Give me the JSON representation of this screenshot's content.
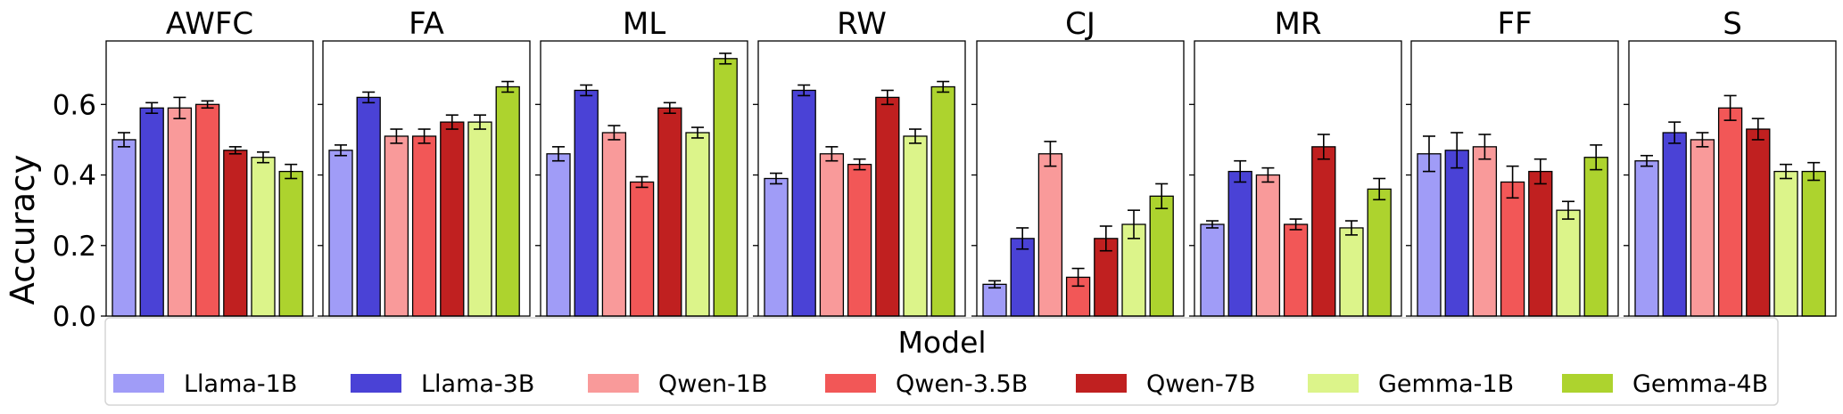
{
  "chart_data": {
    "type": "bar",
    "ylabel": "Accuracy",
    "ylim": [
      0,
      0.78
    ],
    "yticks": [
      "0.0",
      "0.2",
      "0.4",
      "0.6"
    ],
    "error_bars": true,
    "legend": {
      "title": "Model",
      "placement": "bottom-center",
      "entries": [
        "Llama-1B",
        "Llama-3B",
        "Qwen-1B",
        "Qwen-3.5B",
        "Qwen-7B",
        "Gemma-1B",
        "Gemma-4B"
      ]
    },
    "models": [
      {
        "name": "Llama-1B",
        "color": "#a09cf7"
      },
      {
        "name": "Llama-3B",
        "color": "#4a42d6"
      },
      {
        "name": "Qwen-1B",
        "color": "#f99a9a"
      },
      {
        "name": "Qwen-3.5B",
        "color": "#f25757"
      },
      {
        "name": "Qwen-7B",
        "color": "#c02020"
      },
      {
        "name": "Gemma-1B",
        "color": "#dcf48a"
      },
      {
        "name": "Gemma-4B",
        "color": "#add32e"
      }
    ],
    "panels": [
      {
        "title": "AWFC",
        "values": [
          0.5,
          0.59,
          0.59,
          0.6,
          0.47,
          0.45,
          0.41
        ],
        "errors": [
          0.02,
          0.015,
          0.03,
          0.01,
          0.01,
          0.015,
          0.02
        ]
      },
      {
        "title": "FA",
        "values": [
          0.47,
          0.62,
          0.51,
          0.51,
          0.55,
          0.55,
          0.65
        ],
        "errors": [
          0.015,
          0.015,
          0.02,
          0.02,
          0.02,
          0.02,
          0.015
        ]
      },
      {
        "title": "ML",
        "values": [
          0.46,
          0.64,
          0.52,
          0.38,
          0.59,
          0.52,
          0.73
        ],
        "errors": [
          0.02,
          0.015,
          0.02,
          0.015,
          0.015,
          0.015,
          0.015
        ]
      },
      {
        "title": "RW",
        "values": [
          0.39,
          0.64,
          0.46,
          0.43,
          0.62,
          0.51,
          0.65
        ],
        "errors": [
          0.015,
          0.015,
          0.02,
          0.015,
          0.02,
          0.02,
          0.015
        ]
      },
      {
        "title": "CJ",
        "values": [
          0.09,
          0.22,
          0.46,
          0.11,
          0.22,
          0.26,
          0.34
        ],
        "errors": [
          0.01,
          0.03,
          0.035,
          0.025,
          0.035,
          0.04,
          0.035
        ]
      },
      {
        "title": "MR",
        "values": [
          0.26,
          0.41,
          0.4,
          0.26,
          0.48,
          0.25,
          0.36
        ],
        "errors": [
          0.01,
          0.03,
          0.02,
          0.015,
          0.035,
          0.02,
          0.03
        ]
      },
      {
        "title": "FF",
        "values": [
          0.46,
          0.47,
          0.48,
          0.38,
          0.41,
          0.3,
          0.45
        ],
        "errors": [
          0.05,
          0.05,
          0.035,
          0.045,
          0.035,
          0.025,
          0.035
        ]
      },
      {
        "title": "S",
        "values": [
          0.44,
          0.52,
          0.5,
          0.59,
          0.53,
          0.41,
          0.41
        ],
        "errors": [
          0.015,
          0.03,
          0.02,
          0.035,
          0.03,
          0.02,
          0.025
        ]
      }
    ]
  }
}
